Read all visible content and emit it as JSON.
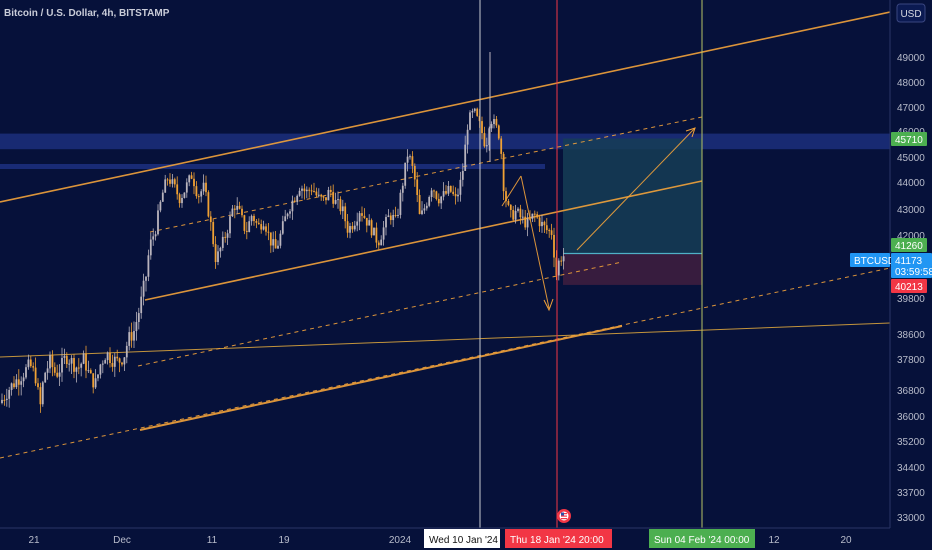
{
  "header": {
    "symbol_title": "Bitcoin / U.S. Dollar, 4h, BITSTAMP"
  },
  "currency_button": "USD",
  "colors": {
    "background": "#06113a",
    "channel": "#f3a33a",
    "candle": "#f0a134",
    "candle_alt": "#b9b4bd",
    "zone": "#1c2f7d",
    "profit_zone": "#163d56",
    "loss_zone": "#3a1d3e",
    "current_price": "#2196f3",
    "target": "#4caf50",
    "stop": "#f23645",
    "vline_white": "#c8cad3",
    "vline_red": "#f23645",
    "vline_green": "#b5c267"
  },
  "chart_data": {
    "type": "candlestick",
    "timeframe": "4h",
    "symbol": "BTCUSD",
    "exchange": "BITSTAMP",
    "y_ticks": [
      49000,
      48000,
      47000,
      46000,
      45000,
      44000,
      43000,
      42000,
      41000,
      39800,
      38600,
      37800,
      36800,
      36000,
      35200,
      34400,
      33700,
      33000
    ],
    "x_ticks": [
      "21",
      "Dec",
      "11",
      "19",
      "2024",
      "12",
      "20"
    ],
    "x_axis_markers": [
      {
        "label": "Wed 10 Jan '24",
        "style": "white"
      },
      {
        "label": "Thu 18 Jan '24   20:00",
        "style": "red"
      },
      {
        "label": "Sun 04 Feb '24   00:00",
        "style": "green"
      }
    ],
    "price_labels": [
      {
        "label": "45710",
        "role": "target",
        "value": 45710
      },
      {
        "label": "41260",
        "role": "entry",
        "value": 41260
      },
      {
        "label": "BTCUSD",
        "role": "symbol",
        "value": 41173
      },
      {
        "label": "41173",
        "role": "last",
        "value": 41173
      },
      {
        "label": "03:59:58",
        "role": "countdown",
        "value": 41173
      },
      {
        "label": "40213",
        "role": "stop",
        "value": 40213
      }
    ],
    "position": {
      "entry": 41260,
      "target": 45710,
      "stop": 40213
    },
    "resistance_zone": [
      45300,
      45900
    ],
    "candle_path": [
      [
        0,
        36400
      ],
      [
        8,
        36800
      ],
      [
        16,
        37100
      ],
      [
        22,
        37300
      ],
      [
        30,
        37600
      ],
      [
        36,
        37200
      ],
      [
        40,
        36200
      ],
      [
        44,
        37300
      ],
      [
        50,
        37700
      ],
      [
        56,
        37300
      ],
      [
        62,
        37600
      ],
      [
        66,
        37900
      ],
      [
        72,
        37700
      ],
      [
        78,
        37500
      ],
      [
        84,
        37800
      ],
      [
        90,
        37200
      ],
      [
        96,
        37000
      ],
      [
        100,
        37600
      ],
      [
        106,
        38000
      ],
      [
        112,
        37800
      ],
      [
        118,
        37700
      ],
      [
        124,
        37900
      ],
      [
        128,
        38400
      ],
      [
        134,
        38700
      ],
      [
        140,
        39500
      ],
      [
        146,
        40500
      ],
      [
        150,
        41600
      ],
      [
        156,
        42300
      ],
      [
        162,
        43500
      ],
      [
        168,
        44200
      ],
      [
        174,
        43800
      ],
      [
        180,
        43400
      ],
      [
        186,
        43800
      ],
      [
        192,
        44300
      ],
      [
        198,
        43500
      ],
      [
        204,
        43800
      ],
      [
        210,
        42600
      ],
      [
        216,
        41000
      ],
      [
        222,
        41600
      ],
      [
        228,
        42300
      ],
      [
        234,
        43200
      ],
      [
        240,
        42800
      ],
      [
        246,
        42100
      ],
      [
        252,
        42800
      ],
      [
        258,
        42300
      ],
      [
        264,
        42600
      ],
      [
        270,
        41800
      ],
      [
        276,
        41400
      ],
      [
        282,
        42200
      ],
      [
        288,
        43000
      ],
      [
        294,
        43400
      ],
      [
        300,
        43900
      ],
      [
        306,
        43600
      ],
      [
        312,
        43800
      ],
      [
        318,
        43400
      ],
      [
        324,
        43300
      ],
      [
        330,
        43700
      ],
      [
        336,
        43200
      ],
      [
        342,
        43000
      ],
      [
        348,
        42200
      ],
      [
        354,
        42500
      ],
      [
        360,
        43000
      ],
      [
        366,
        42600
      ],
      [
        372,
        42200
      ],
      [
        378,
        41700
      ],
      [
        384,
        42300
      ],
      [
        390,
        42800
      ],
      [
        396,
        42500
      ],
      [
        402,
        43800
      ],
      [
        408,
        45200
      ],
      [
        414,
        44300
      ],
      [
        420,
        42600
      ],
      [
        426,
        43200
      ],
      [
        432,
        43900
      ],
      [
        438,
        43400
      ],
      [
        444,
        43500
      ],
      [
        450,
        43700
      ],
      [
        456,
        43300
      ],
      [
        462,
        44200
      ],
      [
        468,
        46400
      ],
      [
        474,
        46800
      ],
      [
        480,
        46200
      ],
      [
        486,
        45400
      ],
      [
        490,
        46600
      ],
      [
        494,
        46300
      ],
      [
        500,
        45800
      ],
      [
        504,
        43700
      ],
      [
        510,
        42700
      ],
      [
        516,
        42900
      ],
      [
        522,
        42600
      ],
      [
        528,
        42400
      ],
      [
        534,
        42800
      ],
      [
        540,
        42500
      ],
      [
        546,
        42200
      ],
      [
        552,
        42100
      ],
      [
        556,
        40500
      ],
      [
        560,
        41100
      ],
      [
        564,
        41173
      ]
    ]
  }
}
